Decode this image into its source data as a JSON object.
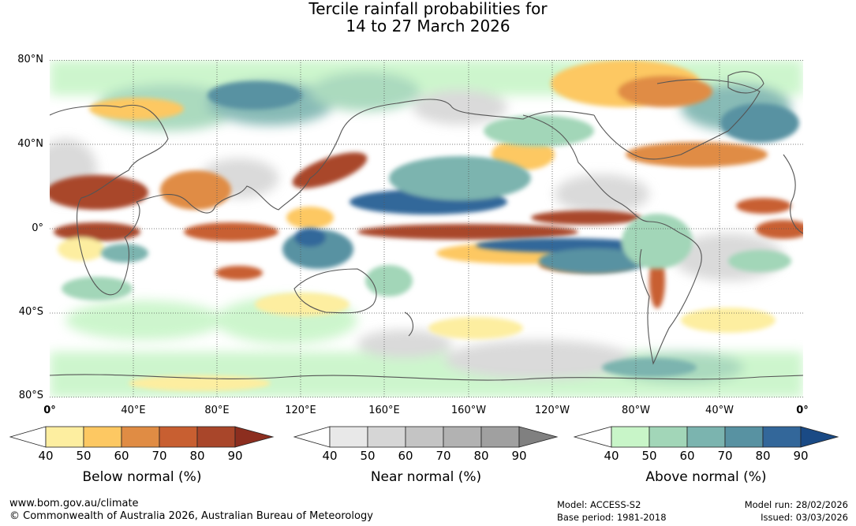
{
  "title": {
    "line1": "Tercile rainfall probabilities for",
    "line2": "14 to 27 March 2026"
  },
  "map": {
    "lat_labels": [
      "80°N",
      "40°N",
      "0°",
      "40°S",
      "80°S"
    ],
    "lon_labels": [
      "0°",
      "40°E",
      "80°E",
      "120°E",
      "160°E",
      "160°W",
      "120°W",
      "80°W",
      "40°W",
      "0°"
    ],
    "gridlines": "dotted"
  },
  "legends": [
    {
      "name": "Below normal (%)",
      "ticks": [
        "40",
        "50",
        "60",
        "70",
        "80",
        "90"
      ],
      "colors": [
        "#ffffff",
        "#fdeea0",
        "#fdc862",
        "#e08c44",
        "#c85f31",
        "#a9462a",
        "#8c2e1f"
      ]
    },
    {
      "name": "Near normal (%)",
      "ticks": [
        "40",
        "50",
        "60",
        "70",
        "80",
        "90"
      ],
      "colors": [
        "#ffffff",
        "#e8e8e8",
        "#d6d6d6",
        "#c4c4c4",
        "#b2b2b2",
        "#a0a0a0",
        "#808080"
      ]
    },
    {
      "name": "Above normal (%)",
      "ticks": [
        "40",
        "50",
        "60",
        "70",
        "80",
        "90"
      ],
      "colors": [
        "#ffffff",
        "#c8f5c8",
        "#a2d6b8",
        "#7bb4af",
        "#5892a2",
        "#33679a",
        "#1a4a85"
      ]
    }
  ],
  "footer": {
    "website": "www.bom.gov.au/climate",
    "copyright": "© Commonwealth of Australia 2026, Australian Bureau of Meteorology",
    "model": "Model: ACCESS-S2",
    "base_period": "Base period: 1981-2018",
    "model_run": "Model run: 28/02/2026",
    "issued": "Issued: 03/03/2026"
  }
}
